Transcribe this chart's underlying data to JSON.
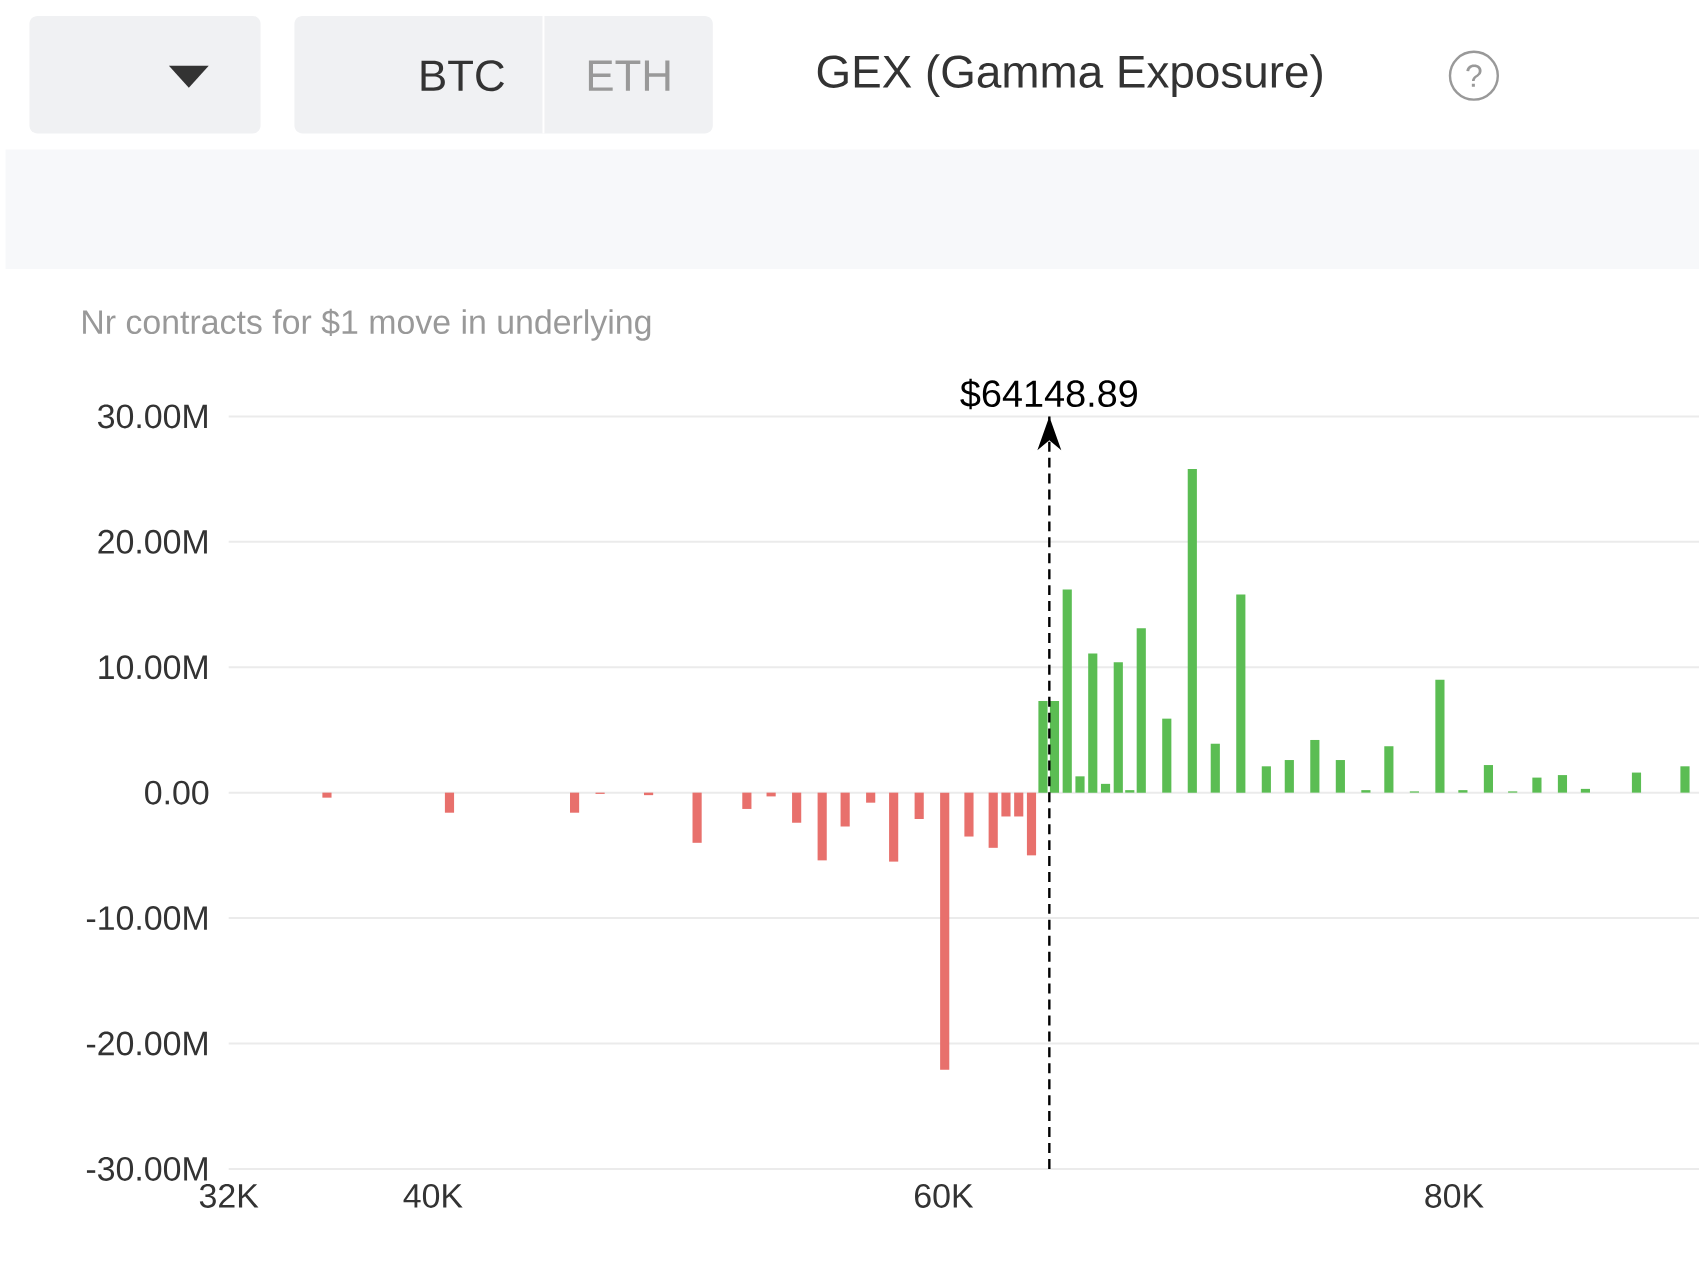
{
  "chart_data": {
    "type": "bar",
    "title": "GEX (Gamma Exposure)",
    "ylabel": "Nr contracts for $1 move in underlying",
    "annotations": [
      "BTC",
      "ETH",
      "?"
    ],
    "x": [
      35850,
      40650,
      45550,
      46550,
      48450,
      50350,
      52300,
      53250,
      54250,
      55250,
      56150,
      57150,
      58050,
      59050,
      60050,
      61000,
      61950,
      62450,
      62950,
      63450,
      63900,
      64350,
      64850,
      65350,
      65850,
      66350,
      66850,
      67300,
      67750,
      68750,
      69750,
      70650,
      71650,
      72650,
      73550,
      74550,
      75550,
      76550,
      77450,
      78450,
      79450,
      80350,
      81350,
      82300,
      83250,
      84250,
      85150,
      87150,
      89050
    ],
    "values": [
      -0.4,
      -1.6,
      -1.6,
      -0.1,
      -0.2,
      -4.0,
      -1.3,
      -0.3,
      -2.4,
      -5.4,
      -2.7,
      -0.8,
      -5.5,
      -2.1,
      -22.1,
      -3.5,
      -4.4,
      -1.9,
      -1.9,
      -5.0,
      7.3,
      7.3,
      16.2,
      1.3,
      11.1,
      0.7,
      10.4,
      0.2,
      13.1,
      5.9,
      25.8,
      3.9,
      15.8,
      2.1,
      2.6,
      4.2,
      2.6,
      0.2,
      3.7,
      0.1,
      9.0,
      0.2,
      2.2,
      0.1,
      1.2,
      1.4,
      0.3,
      1.6,
      2.1
    ],
    "colors": [
      "#e8706c",
      "#e8706c",
      "#e8706c",
      "#e8706c",
      "#e8706c",
      "#e8706c",
      "#e8706c",
      "#e8706c",
      "#e8706c",
      "#e8706c",
      "#e8706c",
      "#e8706c",
      "#e8706c",
      "#e8706c",
      "#e8706c",
      "#e8706c",
      "#e8706c",
      "#e8706c",
      "#e8706c",
      "#e8706c",
      "#5bbd53",
      "#5bbd53",
      "#5bbd53",
      "#5bbd53",
      "#5bbd53",
      "#5bbd53",
      "#5bbd53",
      "#5bbd53",
      "#5bbd53",
      "#5bbd53",
      "#5bbd53",
      "#5bbd53",
      "#5bbd53",
      "#5bbd53",
      "#5bbd53",
      "#5bbd53",
      "#5bbd53",
      "#5bbd53",
      "#5bbd53",
      "#5bbd53",
      "#5bbd53",
      "#5bbd53",
      "#5bbd53",
      "#5bbd53",
      "#5bbd53",
      "#5bbd53",
      "#5bbd53",
      "#5bbd53",
      "#5bbd53"
    ],
    "xlim": [
      32000,
      89600
    ],
    "xticks": [
      {
        "value": 32000,
        "label": "32K"
      },
      {
        "value": 40000,
        "label": "40K"
      },
      {
        "value": 60000,
        "label": "60K"
      },
      {
        "value": 80000,
        "label": "80K"
      }
    ],
    "ylim": [
      -30,
      30
    ],
    "yticks": [
      {
        "value": -30,
        "label": "-30.00M"
      },
      {
        "value": -20,
        "label": "-20.00M"
      },
      {
        "value": -10,
        "label": "-10.00M"
      },
      {
        "value": 0,
        "label": "0.00"
      },
      {
        "value": 10,
        "label": "10.00M"
      },
      {
        "value": 20,
        "label": "20.00M"
      },
      {
        "value": 30,
        "label": "30.00M"
      }
    ],
    "grid": "y",
    "ref_lines": [
      {
        "axis": "x",
        "value": 64148.89,
        "label": "$64148.89",
        "color": "#000000",
        "line_style": "dashed"
      }
    ]
  }
}
